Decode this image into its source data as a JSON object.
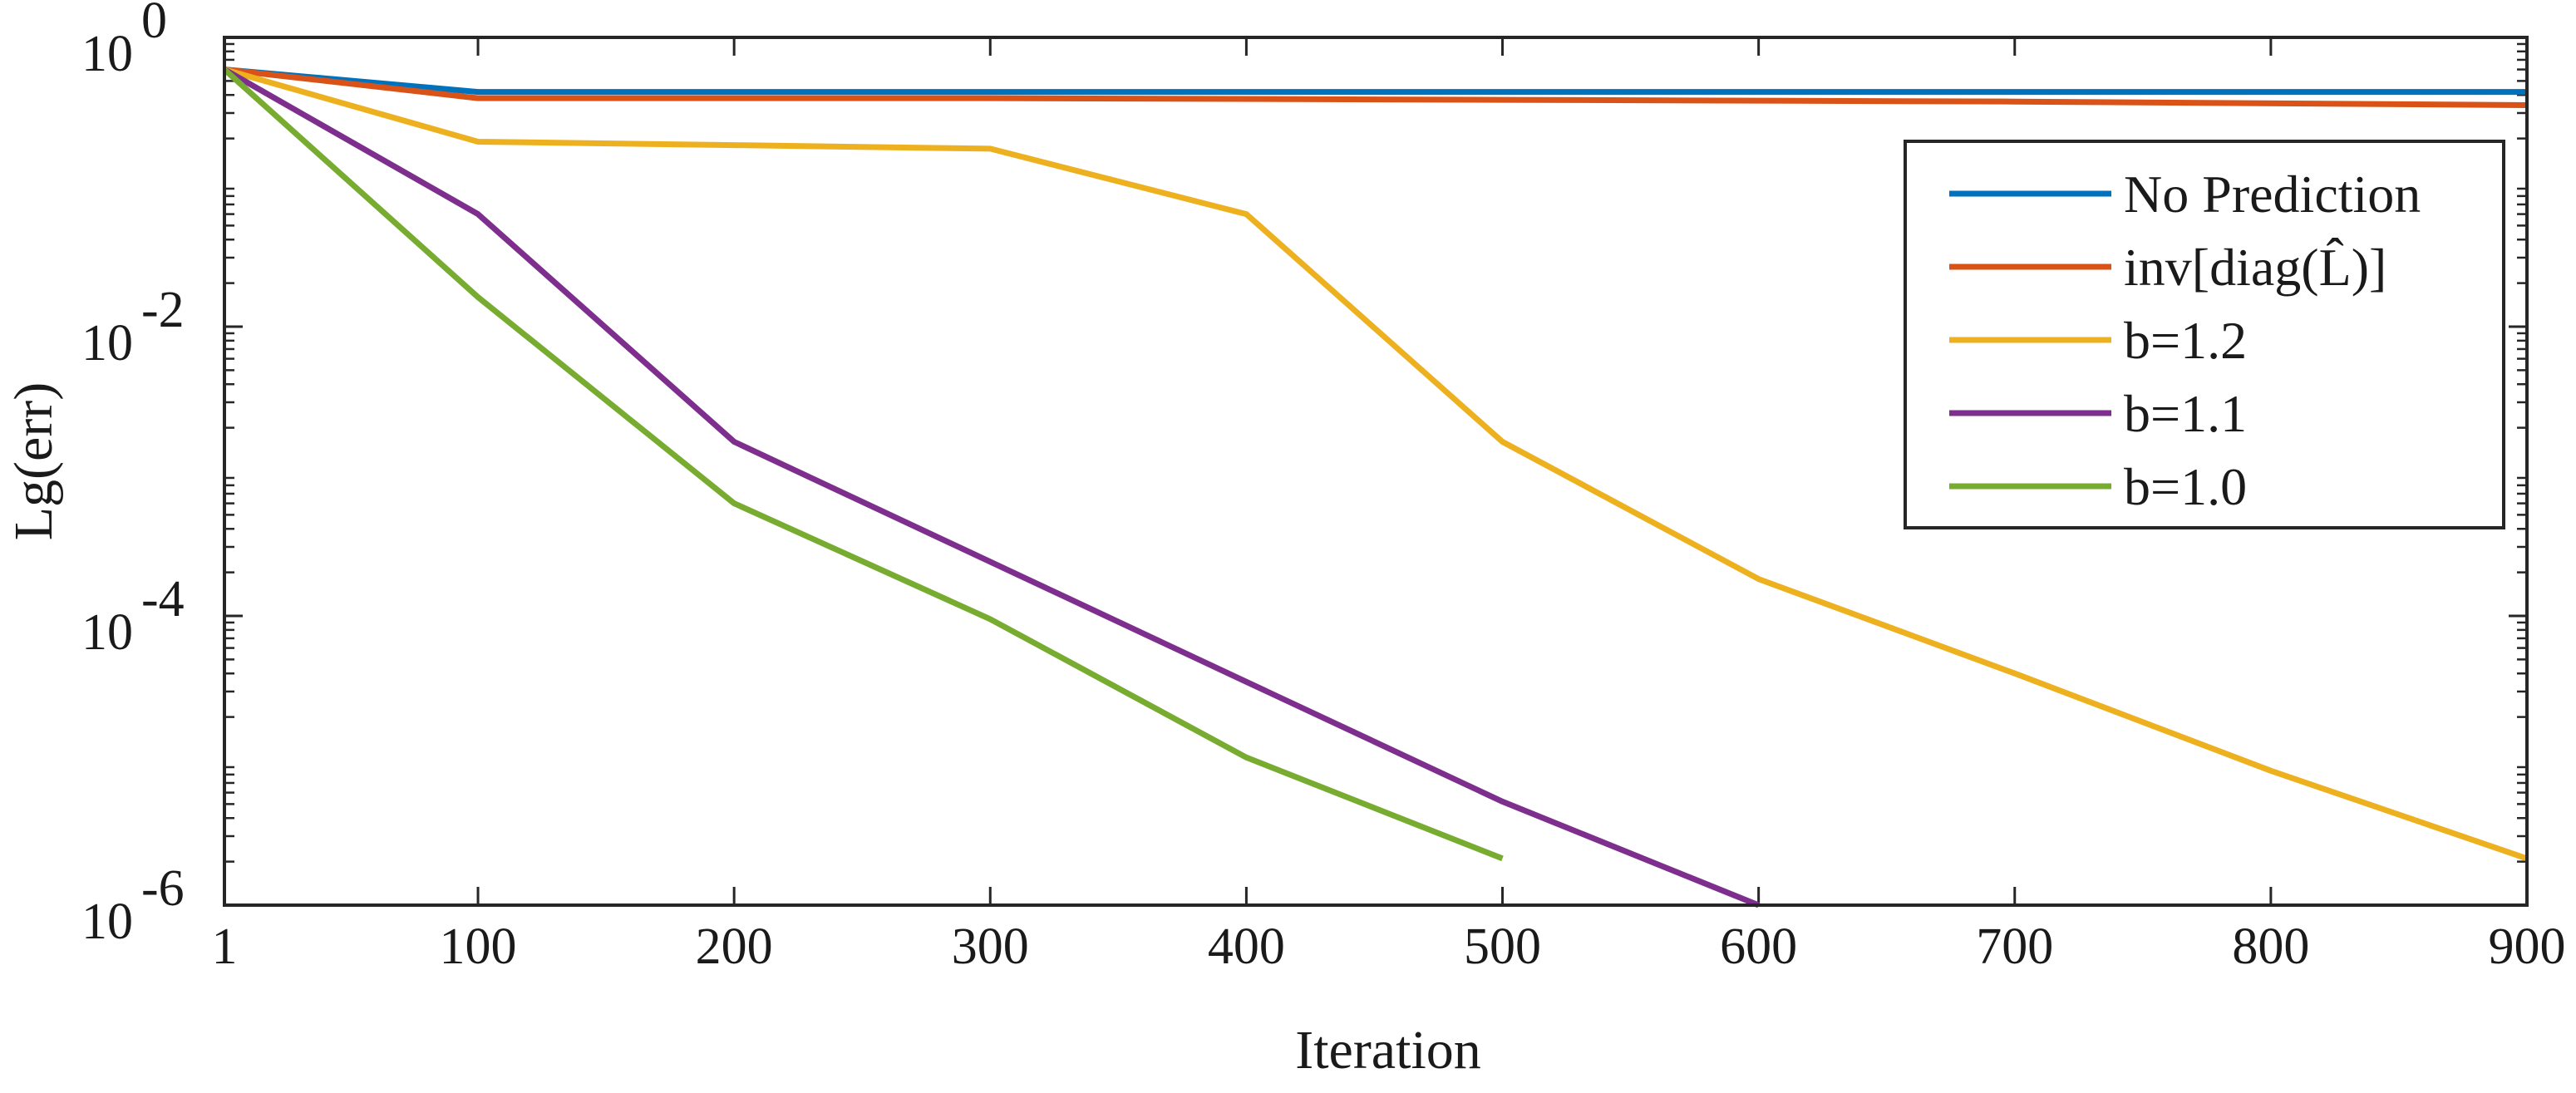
{
  "chart_data": {
    "type": "line",
    "xlabel": "Iteration",
    "ylabel": "Lg(err)",
    "y_scale": "log10",
    "xlim": [
      1,
      900
    ],
    "ylim": [
      1e-06,
      1
    ],
    "x_ticks": [
      1,
      100,
      200,
      300,
      400,
      500,
      600,
      700,
      800,
      900
    ],
    "x_tick_labels": [
      "1",
      "100",
      "200",
      "300",
      "400",
      "500",
      "600",
      "700",
      "800",
      "900"
    ],
    "y_ticks": [
      {
        "value": 1,
        "base": "10",
        "exp": "0"
      },
      {
        "value": 0.01,
        "base": "10",
        "exp": "-2"
      },
      {
        "value": 0.0001,
        "base": "10",
        "exp": "-4"
      },
      {
        "value": 1e-06,
        "base": "10",
        "exp": "-6"
      }
    ],
    "grid": false,
    "legend_position": "top-right",
    "series": [
      {
        "name": "No Prediction",
        "color": "#0072bd",
        "x": [
          1,
          100,
          900
        ],
        "y": [
          0.6,
          0.42,
          0.42
        ]
      },
      {
        "name": "inv[diag(L̂)]",
        "color": "#d95319",
        "x": [
          1,
          100,
          300,
          500,
          700,
          900
        ],
        "y": [
          0.6,
          0.38,
          0.38,
          0.37,
          0.36,
          0.34
        ]
      },
      {
        "name": "b=1.2",
        "color": "#edb120",
        "x": [
          1,
          100,
          200,
          300,
          400,
          500,
          600,
          700,
          800,
          900
        ],
        "y": [
          0.6,
          0.19,
          0.18,
          0.17,
          0.06,
          0.0016,
          0.00018,
          4e-05,
          8.5e-06,
          2.1e-06
        ]
      },
      {
        "name": "b=1.1",
        "color": "#7e2f8e",
        "x": [
          1,
          100,
          200,
          400,
          500,
          600
        ],
        "y": [
          0.6,
          0.06,
          0.0016,
          3.5e-05,
          5.2e-06,
          1e-06
        ]
      },
      {
        "name": "b=1.0",
        "color": "#77ac30",
        "x": [
          1,
          100,
          200,
          300,
          400,
          500
        ],
        "y": [
          0.6,
          0.016,
          0.0006,
          9.5e-05,
          1.05e-05,
          2.1e-06
        ]
      }
    ]
  }
}
